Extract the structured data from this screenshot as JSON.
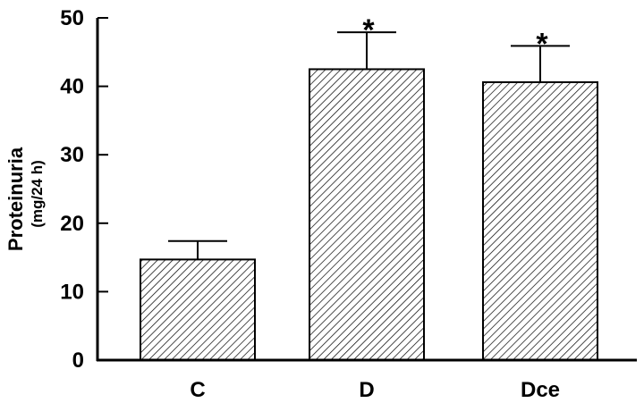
{
  "chart_data": {
    "type": "bar",
    "categories": [
      "C",
      "D",
      "Dce"
    ],
    "values": [
      14.7,
      42.5,
      40.6
    ],
    "errors": [
      2.7,
      5.4,
      5.3
    ],
    "annotations": [
      "",
      "*",
      "*"
    ],
    "title": "",
    "xlabel": "",
    "ylabel": "Proteinuria",
    "ylabel_unit": "(mg/24 h)",
    "ylim": [
      0,
      50
    ],
    "yticks": [
      0,
      10,
      20,
      30,
      40,
      50
    ],
    "grid": false,
    "bar_fill": "diagonal-hatch",
    "colors": {
      "bar_stroke": "#000000",
      "hatch": "#000000",
      "background": "#ffffff"
    }
  }
}
